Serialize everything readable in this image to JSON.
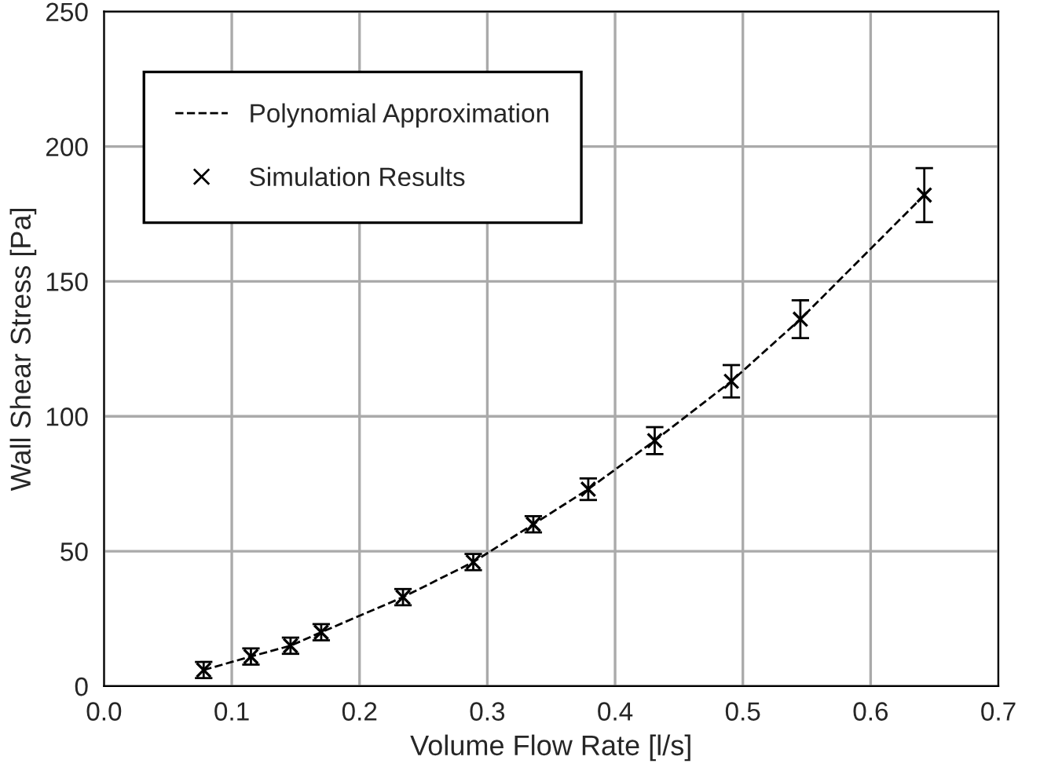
{
  "chart_data": {
    "type": "scatter",
    "xlabel": "Volume Flow Rate [l/s]",
    "ylabel": "Wall Shear Stress [Pa]",
    "xlim": [
      0.0,
      0.7
    ],
    "xticks": [
      {
        "value": 0,
        "label": "0.0"
      },
      0.1,
      0.2,
      0.3,
      0.4,
      0.5,
      0.6,
      0.7
    ],
    "ylim": [
      0,
      250
    ],
    "yticks": [
      0,
      50,
      100,
      150,
      200,
      250
    ],
    "grid": true,
    "legend": "top left",
    "series": [
      {
        "name": "Polynomial Approximation",
        "type": "line",
        "line_style": "dashed",
        "marker": "none",
        "color": "#000000",
        "x": [
          0.078,
          0.115,
          0.146,
          0.17,
          0.234,
          0.289,
          0.336,
          0.379,
          0.431,
          0.491,
          0.545,
          0.642
        ],
        "values": [
          6,
          11,
          15,
          20,
          33,
          46,
          60,
          73,
          91,
          113,
          136,
          182
        ]
      },
      {
        "name": "Simulation Results",
        "marker": "cross",
        "color": "#000000",
        "x": [
          0.078,
          0.115,
          0.146,
          0.17,
          0.234,
          0.289,
          0.336,
          0.379,
          0.431,
          0.491,
          0.545,
          0.642
        ],
        "values": [
          6,
          11,
          15,
          20,
          33,
          46,
          60,
          73,
          91,
          113,
          136,
          182
        ],
        "errors": [
          3,
          3,
          3,
          3,
          3,
          3,
          3,
          4,
          5,
          6,
          7,
          10
        ]
      }
    ]
  }
}
